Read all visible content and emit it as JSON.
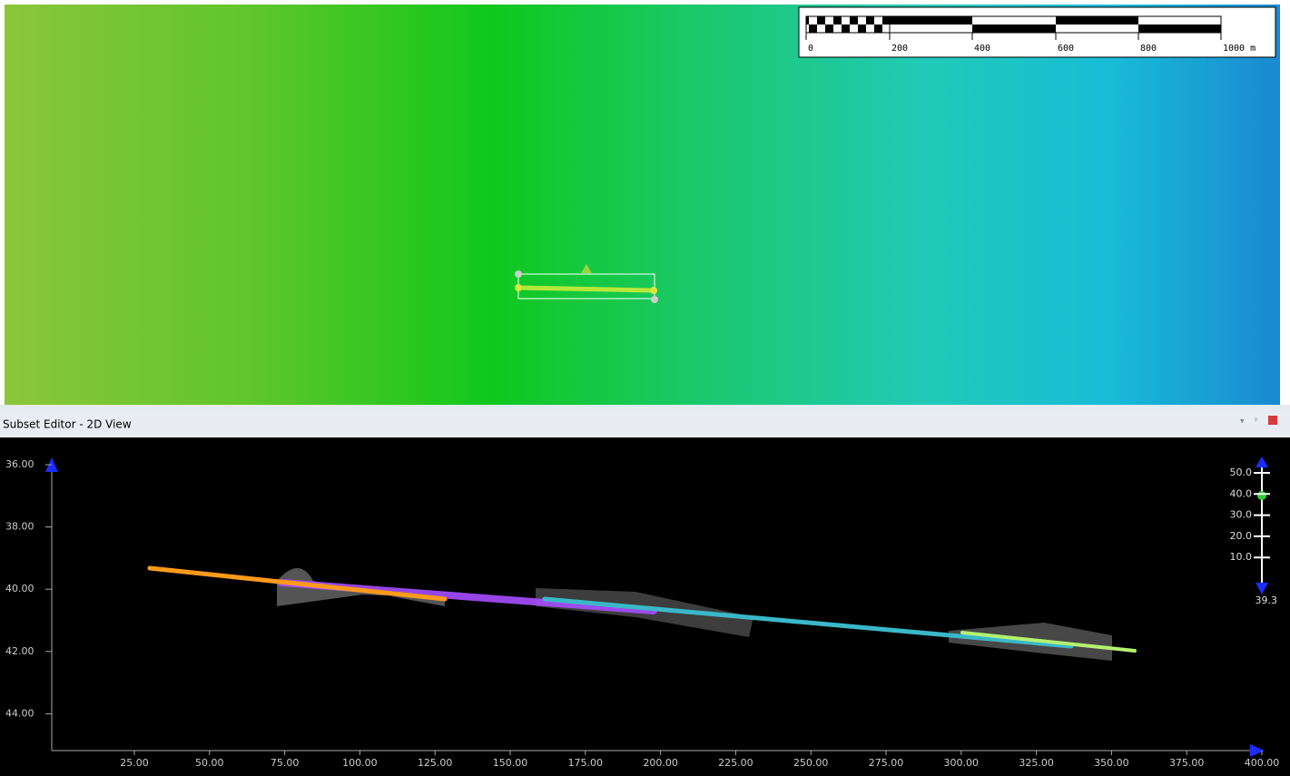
{
  "scale_bar": {
    "labels": [
      "0",
      "200",
      "400",
      "600",
      "800",
      "1000 m"
    ]
  },
  "panel": {
    "title": "Subset Editor - 2D View"
  },
  "plot": {
    "y_labels": [
      "36.00",
      "38.00",
      "40.00",
      "42.00",
      "44.00"
    ],
    "x_labels": [
      "25.00",
      "50.00",
      "75.00",
      "100.00",
      "125.00",
      "150.00",
      "175.00",
      "200.00",
      "225.00",
      "250.00",
      "275.00",
      "300.00",
      "325.00",
      "350.00",
      "375.00",
      "400.00"
    ]
  },
  "depth_scale": {
    "labels": [
      "50.0",
      "40.0",
      "30.0",
      "20.0",
      "10.0"
    ],
    "current": "39.3"
  }
}
